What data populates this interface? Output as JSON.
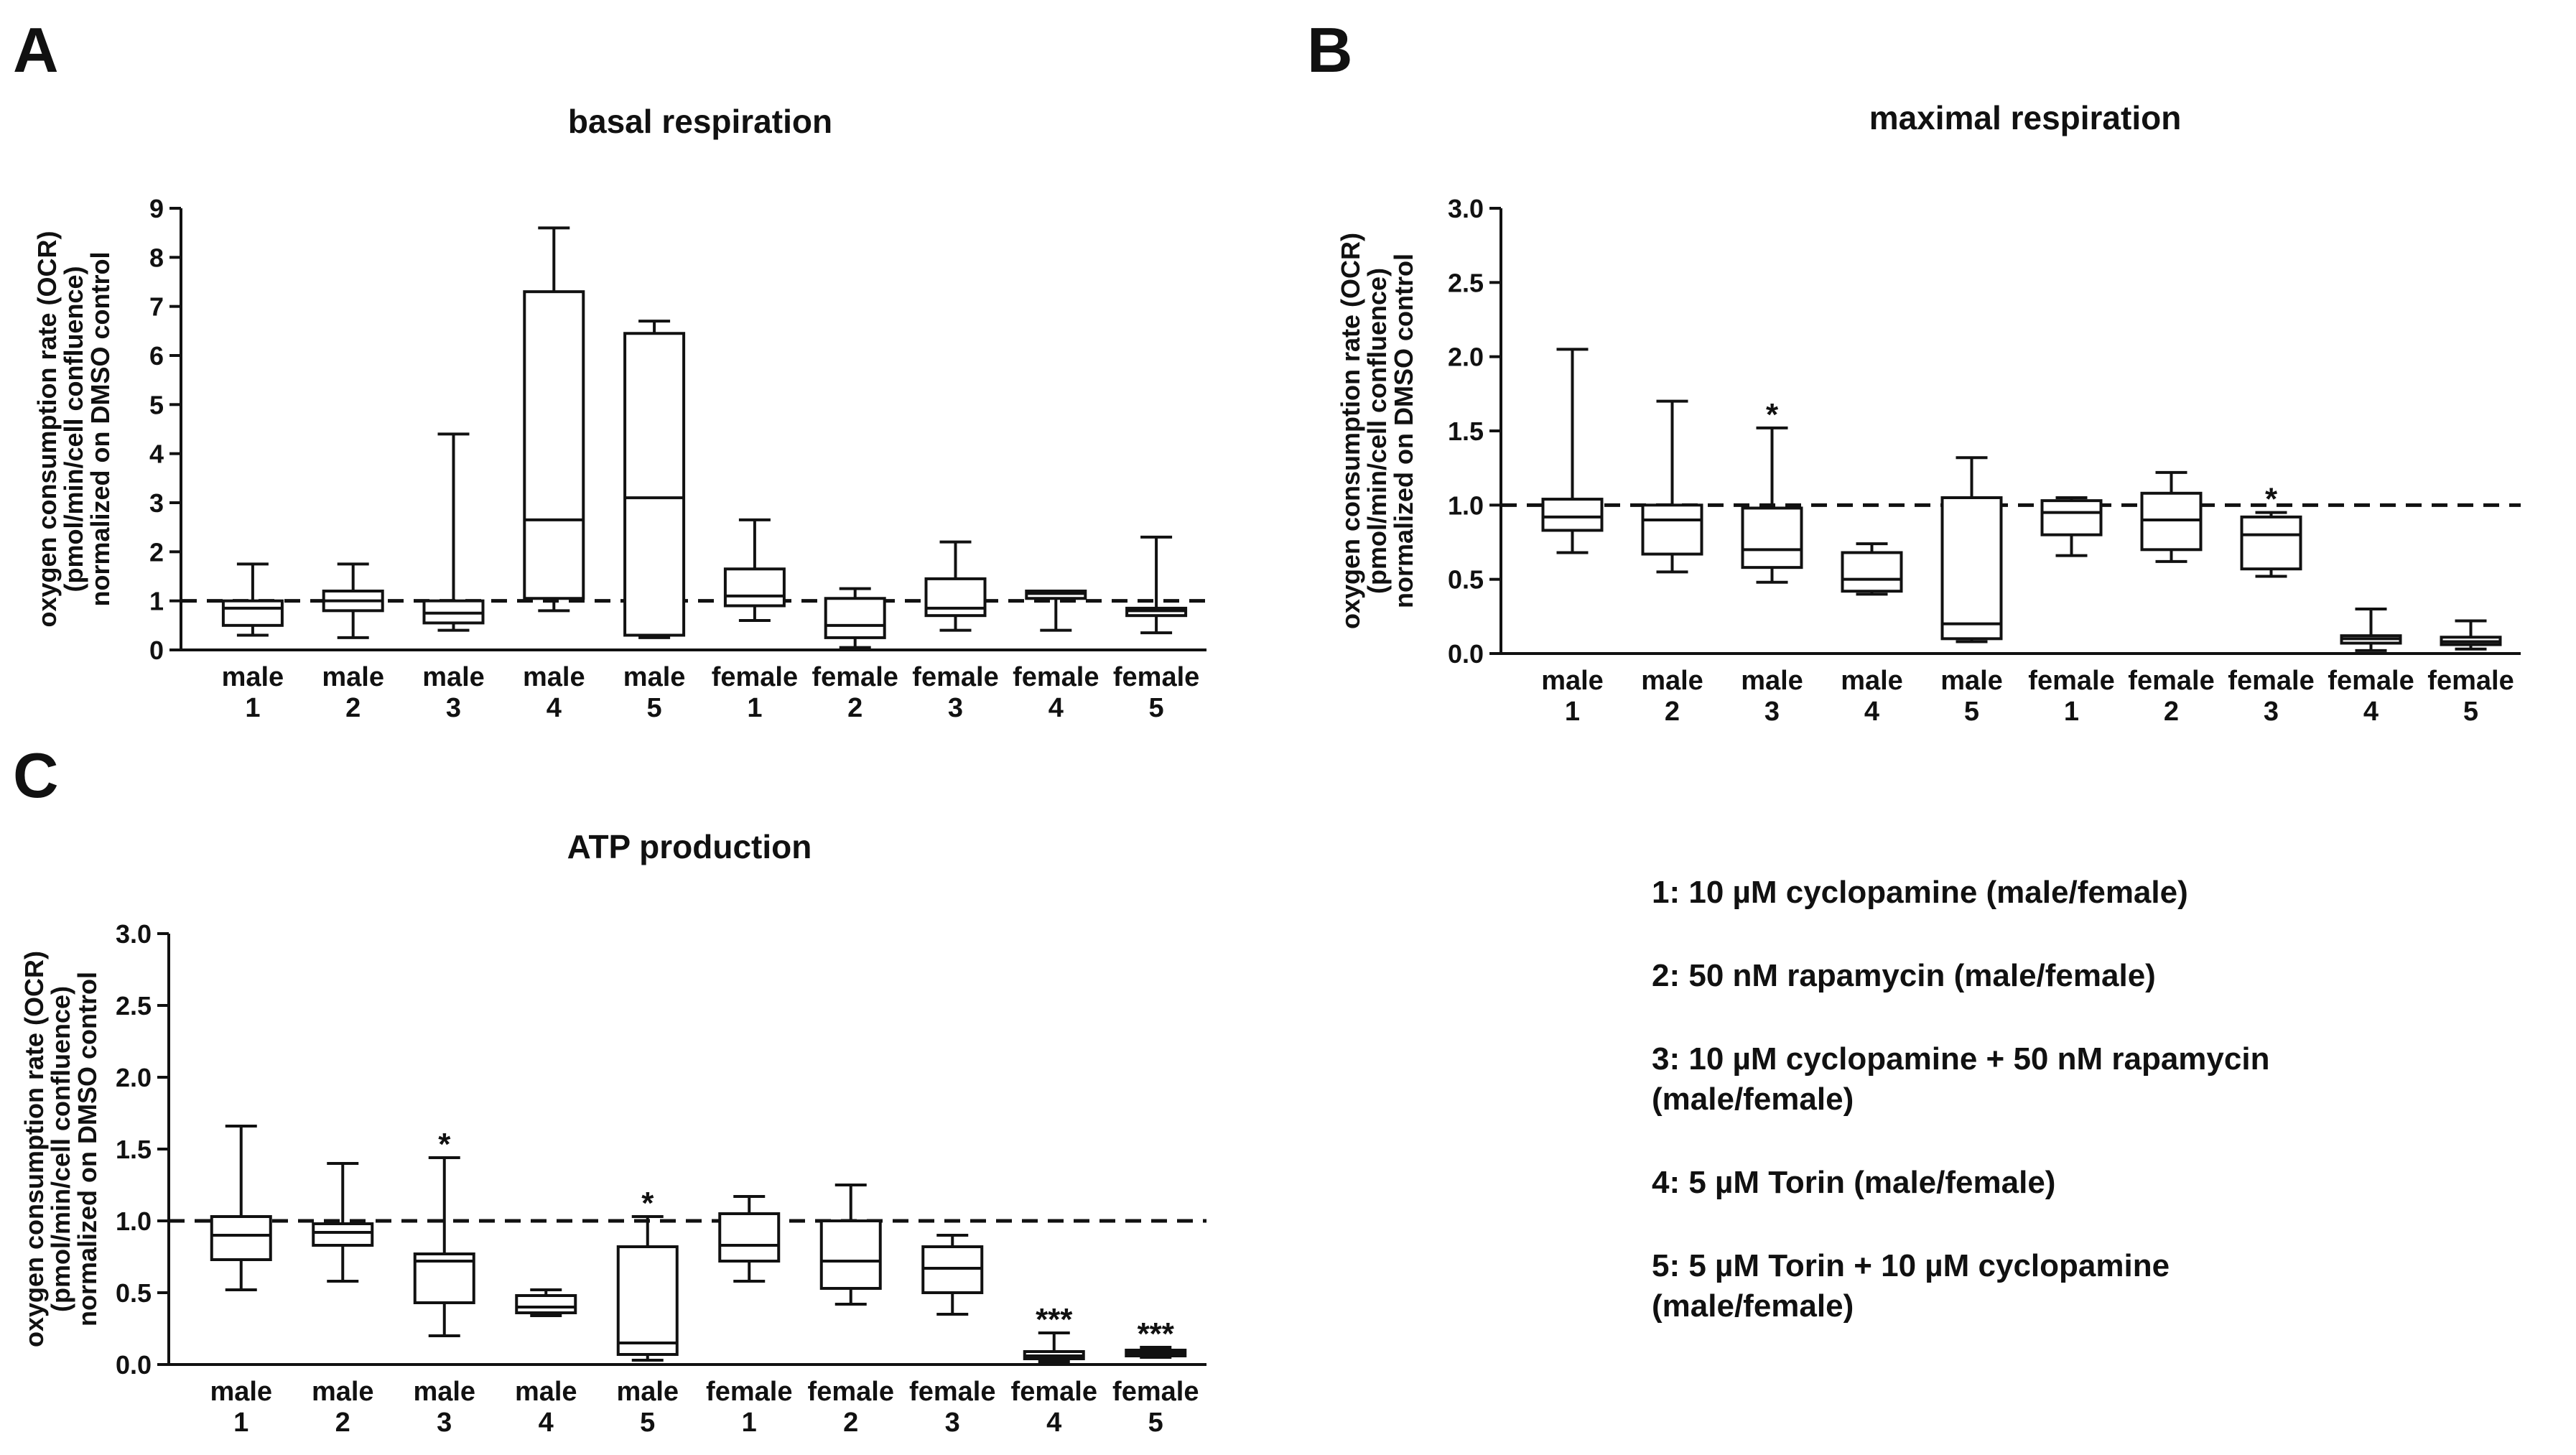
{
  "panels": [
    {
      "letter": "A"
    },
    {
      "letter": "B"
    },
    {
      "letter": "C"
    }
  ],
  "chart_data": [
    {
      "type": "boxplot",
      "panel": "A",
      "title": "basal respiration",
      "ylabel": [
        "oxygen consumption rate (OCR)",
        "(pmol/min/cell confluence)",
        "normalized on DMSO control"
      ],
      "ylim": [
        0,
        9
      ],
      "yticks": [
        "0",
        "1",
        "2",
        "3",
        "4",
        "5",
        "6",
        "7",
        "8",
        "9"
      ],
      "reference_line": 1.0,
      "categories": [
        {
          "line1": "male",
          "line2": "1"
        },
        {
          "line1": "male",
          "line2": "2"
        },
        {
          "line1": "male",
          "line2": "3"
        },
        {
          "line1": "male",
          "line2": "4"
        },
        {
          "line1": "male",
          "line2": "5"
        },
        {
          "line1": "female",
          "line2": "1"
        },
        {
          "line1": "female",
          "line2": "2"
        },
        {
          "line1": "female",
          "line2": "3"
        },
        {
          "line1": "female",
          "line2": "4"
        },
        {
          "line1": "female",
          "line2": "5"
        }
      ],
      "boxes": [
        {
          "min": 0.3,
          "q1": 0.5,
          "median": 0.85,
          "q3": 1.0,
          "max": 1.75
        },
        {
          "min": 0.25,
          "q1": 0.8,
          "median": 1.0,
          "q3": 1.2,
          "max": 1.75
        },
        {
          "min": 0.4,
          "q1": 0.55,
          "median": 0.75,
          "q3": 1.0,
          "max": 4.4
        },
        {
          "min": 0.8,
          "q1": 1.05,
          "median": 2.65,
          "q3": 7.3,
          "max": 8.6
        },
        {
          "min": 0.25,
          "q1": 0.3,
          "median": 3.1,
          "q3": 6.45,
          "max": 6.7
        },
        {
          "min": 0.6,
          "q1": 0.9,
          "median": 1.1,
          "q3": 1.65,
          "max": 2.65
        },
        {
          "min": 0.05,
          "q1": 0.25,
          "median": 0.5,
          "q3": 1.05,
          "max": 1.25
        },
        {
          "min": 0.4,
          "q1": 0.7,
          "median": 0.85,
          "q3": 1.45,
          "max": 2.2
        },
        {
          "min": 0.4,
          "q1": 1.05,
          "median": 1.15,
          "q3": 1.2,
          "max": 1.2
        },
        {
          "min": 0.35,
          "q1": 0.7,
          "median": 0.8,
          "q3": 0.85,
          "max": 2.3
        }
      ],
      "annotations": [
        "",
        "",
        "",
        "",
        "",
        "",
        "",
        "",
        "",
        ""
      ]
    },
    {
      "type": "boxplot",
      "panel": "B",
      "title": "maximal respiration",
      "ylabel": [
        "oxygen consumption rate (OCR)",
        "(pmol/min/cell confluence)",
        "normalized on DMSO control"
      ],
      "ylim": [
        0,
        3.0
      ],
      "yticks": [
        "0.0",
        "0.5",
        "1.0",
        "1.5",
        "2.0",
        "2.5",
        "3.0"
      ],
      "reference_line": 1.0,
      "categories": [
        {
          "line1": "male",
          "line2": "1"
        },
        {
          "line1": "male",
          "line2": "2"
        },
        {
          "line1": "male",
          "line2": "3"
        },
        {
          "line1": "male",
          "line2": "4"
        },
        {
          "line1": "male",
          "line2": "5"
        },
        {
          "line1": "female",
          "line2": "1"
        },
        {
          "line1": "female",
          "line2": "2"
        },
        {
          "line1": "female",
          "line2": "3"
        },
        {
          "line1": "female",
          "line2": "4"
        },
        {
          "line1": "female",
          "line2": "5"
        }
      ],
      "boxes": [
        {
          "min": 0.68,
          "q1": 0.83,
          "median": 0.92,
          "q3": 1.04,
          "max": 2.05
        },
        {
          "min": 0.55,
          "q1": 0.67,
          "median": 0.9,
          "q3": 1.0,
          "max": 1.7
        },
        {
          "min": 0.48,
          "q1": 0.58,
          "median": 0.7,
          "q3": 0.98,
          "max": 1.52
        },
        {
          "min": 0.4,
          "q1": 0.42,
          "median": 0.5,
          "q3": 0.68,
          "max": 0.74
        },
        {
          "min": 0.08,
          "q1": 0.1,
          "median": 0.2,
          "q3": 1.05,
          "max": 1.32
        },
        {
          "min": 0.66,
          "q1": 0.8,
          "median": 0.95,
          "q3": 1.03,
          "max": 1.05
        },
        {
          "min": 0.62,
          "q1": 0.7,
          "median": 0.9,
          "q3": 1.08,
          "max": 1.22
        },
        {
          "min": 0.52,
          "q1": 0.57,
          "median": 0.8,
          "q3": 0.92,
          "max": 0.95
        },
        {
          "min": 0.02,
          "q1": 0.07,
          "median": 0.1,
          "q3": 0.12,
          "max": 0.3
        },
        {
          "min": 0.03,
          "q1": 0.06,
          "median": 0.08,
          "q3": 0.11,
          "max": 0.22
        }
      ],
      "annotations": [
        "",
        "",
        "*",
        "",
        "",
        "",
        "",
        "*",
        "",
        ""
      ]
    },
    {
      "type": "boxplot",
      "panel": "C",
      "title": "ATP production",
      "ylabel": [
        "oxygen consumption rate (OCR)",
        "(pmol/min/cell confluence)",
        "normalized on DMSO control"
      ],
      "ylim": [
        0,
        3.0
      ],
      "yticks": [
        "0.0",
        "0.5",
        "1.0",
        "1.5",
        "2.0",
        "2.5",
        "3.0"
      ],
      "reference_line": 1.0,
      "categories": [
        {
          "line1": "male",
          "line2": "1"
        },
        {
          "line1": "male",
          "line2": "2"
        },
        {
          "line1": "male",
          "line2": "3"
        },
        {
          "line1": "male",
          "line2": "4"
        },
        {
          "line1": "male",
          "line2": "5"
        },
        {
          "line1": "female",
          "line2": "1"
        },
        {
          "line1": "female",
          "line2": "2"
        },
        {
          "line1": "female",
          "line2": "3"
        },
        {
          "line1": "female",
          "line2": "4"
        },
        {
          "line1": "female",
          "line2": "5"
        }
      ],
      "boxes": [
        {
          "min": 0.52,
          "q1": 0.73,
          "median": 0.9,
          "q3": 1.03,
          "max": 1.66
        },
        {
          "min": 0.58,
          "q1": 0.83,
          "median": 0.92,
          "q3": 0.98,
          "max": 1.4
        },
        {
          "min": 0.2,
          "q1": 0.43,
          "median": 0.72,
          "q3": 0.77,
          "max": 1.44
        },
        {
          "min": 0.34,
          "q1": 0.36,
          "median": 0.4,
          "q3": 0.48,
          "max": 0.52
        },
        {
          "min": 0.03,
          "q1": 0.07,
          "median": 0.15,
          "q3": 0.82,
          "max": 1.03
        },
        {
          "min": 0.58,
          "q1": 0.72,
          "median": 0.83,
          "q3": 1.05,
          "max": 1.17
        },
        {
          "min": 0.42,
          "q1": 0.53,
          "median": 0.72,
          "q3": 1.0,
          "max": 1.25
        },
        {
          "min": 0.35,
          "q1": 0.5,
          "median": 0.67,
          "q3": 0.82,
          "max": 0.9
        },
        {
          "min": 0.02,
          "q1": 0.04,
          "median": 0.06,
          "q3": 0.09,
          "max": 0.22
        },
        {
          "min": 0.05,
          "q1": 0.06,
          "median": 0.08,
          "q3": 0.1,
          "max": 0.12
        }
      ],
      "annotations": [
        "",
        "",
        "*",
        "",
        "*",
        "",
        "",
        "",
        "***",
        "***"
      ]
    }
  ],
  "legend": {
    "items": [
      "1: 10 µM cyclopamine (male/female)",
      "2: 50 nM rapamycin (male/female)",
      "3: 10 µM cyclopamine + 50 nM rapamycin\n    (male/female)",
      "4: 5 µM Torin (male/female)",
      "5: 5 µM Torin + 10 µM cyclopamine\n    (male/female)"
    ]
  }
}
